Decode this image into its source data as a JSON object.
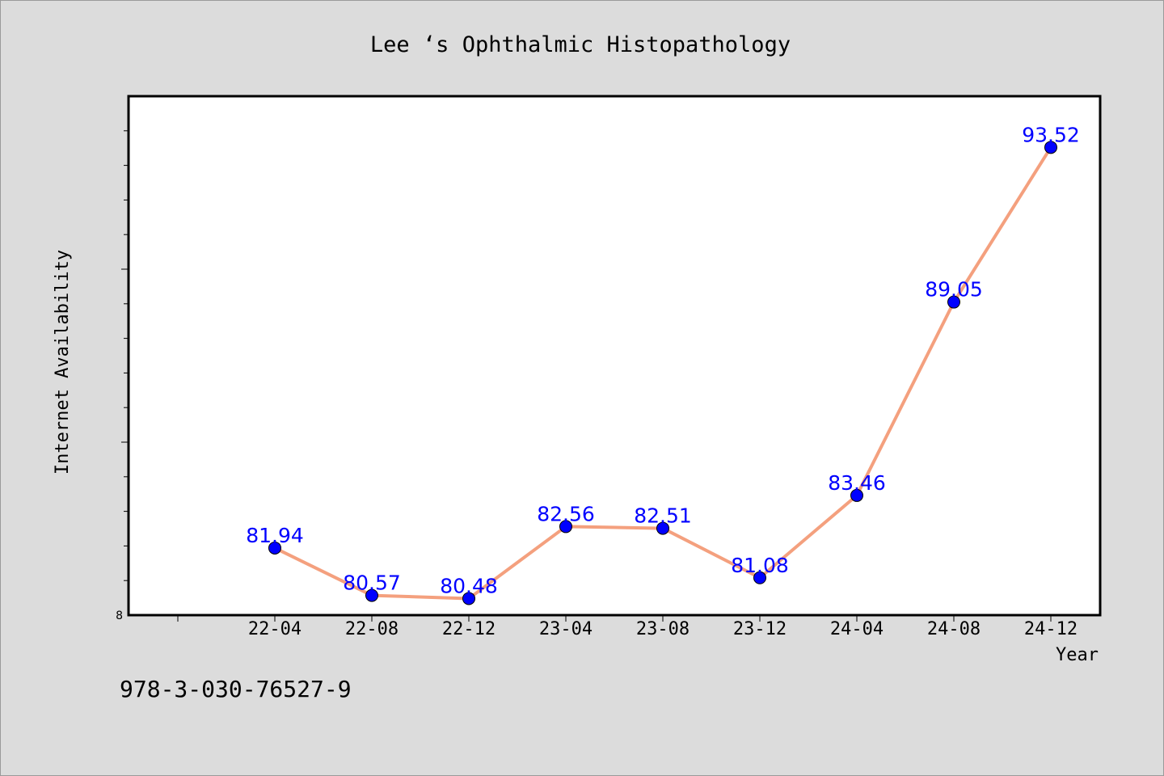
{
  "chart_data": {
    "type": "line",
    "title": "Lee ‘s Ophthalmic Histopathology",
    "xlabel": "Year",
    "ylabel": "Internet Availability",
    "categories": [
      "22-04",
      "22-08",
      "22-12",
      "23-04",
      "23-08",
      "23-12",
      "24-04",
      "24-08",
      "24-12"
    ],
    "values": [
      81.94,
      80.57,
      80.48,
      82.56,
      82.51,
      81.08,
      83.46,
      89.05,
      93.52
    ],
    "data_labels": [
      "81.94",
      "80.57",
      "80.48",
      "82.56",
      "82.51",
      "81.08",
      "83.46",
      "89.05",
      "93.52"
    ],
    "ylim": [
      80.0,
      95.0
    ],
    "y_tick_labels": [
      "8"
    ],
    "y_minor_tick_count": 15,
    "grid": false,
    "legend": "none",
    "colors": {
      "line": "#f4a07e",
      "marker": "#0000ff",
      "label": "#0000ff",
      "background": "#dcdcdc",
      "plot_background": "#ffffff"
    }
  },
  "footer": {
    "isbn": "978-3-030-76527-9"
  }
}
